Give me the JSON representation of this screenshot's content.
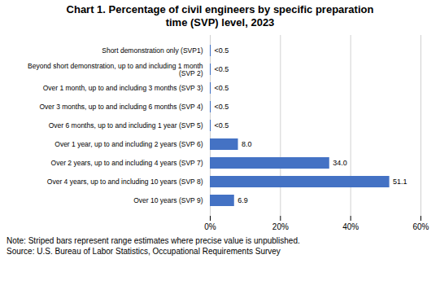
{
  "chart_data": {
    "type": "bar",
    "orientation": "horizontal",
    "title": "Chart 1. Percentage of civil engineers by specific preparation\ntime (SVP) level, 2023",
    "categories": [
      "Short demonstration only (SVP1)",
      "Beyond short demonstration, up to and including 1 month\n(SVP 2)",
      "Over 1 month, up to and including 3 months (SVP 3)",
      "Over 3 months, up to and including 6 months (SVP 4)",
      "Over 6 months, up to and including 1 year (SVP 5)",
      "Over 1 year, up to and including 2 years (SVP 6)",
      "Over 2 years, up to and including 4 years (SVP 7)",
      "Over 4 years, up to and including 10 years (SVP 8)",
      "Over 10 years (SVP 9)"
    ],
    "values": [
      0.25,
      0.25,
      0.25,
      0.25,
      0.25,
      8.0,
      34.0,
      51.1,
      6.9
    ],
    "value_labels": [
      "<0.5",
      "<0.5",
      "<0.5",
      "<0.5",
      "<0.5",
      "8.0",
      "34.0",
      "51.1",
      "6.9"
    ],
    "data_labels": true,
    "color": "#4472C4",
    "xlim": [
      0,
      60
    ],
    "xticks": [
      {
        "value": 0,
        "label": "0%"
      },
      {
        "value": 20,
        "label": "20%"
      },
      {
        "value": 40,
        "label": "40%"
      },
      {
        "value": 60,
        "label": "60%"
      }
    ],
    "grid": true,
    "annotations": [
      "Note: Striped bars represent range estimates where precise value is unpublished.",
      "Source: U.S. Bureau of Labor Statistics, Occupational Requirements Survey"
    ]
  }
}
